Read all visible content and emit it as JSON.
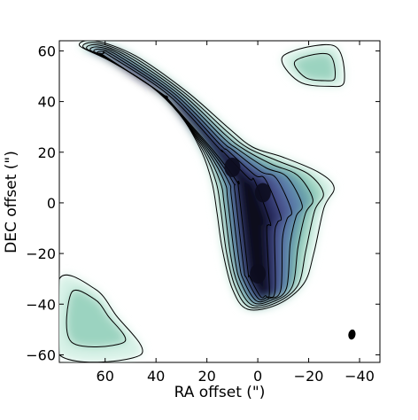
{
  "chart_data": {
    "type": "contour",
    "xlabel": "RA offset (\")",
    "ylabel": "DEC offset (\")",
    "xlim": [
      78,
      -48
    ],
    "ylim": [
      -63,
      64
    ],
    "x_ticks": [
      60,
      40,
      20,
      0,
      -20,
      -40
    ],
    "y_ticks": [
      60,
      40,
      20,
      0,
      -20,
      -40,
      -60
    ],
    "x_tick_labels": [
      "60",
      "40",
      "20",
      "0",
      "−20",
      "−40"
    ],
    "y_tick_labels": [
      "60",
      "40",
      "20",
      "0",
      "−20",
      "−40",
      "−60"
    ],
    "colormap_levels": [
      "#ffffff",
      "#d6f1e6",
      "#9bd3c0",
      "#6aa3aa",
      "#5c7faa",
      "#4b5791",
      "#2c2f63",
      "#0c0c1e"
    ],
    "grid": false,
    "emission_components": [
      {
        "name": "main",
        "outline": [
          [
            70,
            62
          ],
          [
            58,
            56
          ],
          [
            42,
            46
          ],
          [
            30,
            34
          ],
          [
            22,
            20
          ],
          [
            18,
            8
          ],
          [
            16,
            -4
          ],
          [
            14,
            -18
          ],
          [
            10,
            -34
          ],
          [
            4,
            -42
          ],
          [
            -8,
            -40
          ],
          [
            -18,
            -32
          ],
          [
            -22,
            -20
          ],
          [
            -26,
            -2
          ],
          [
            -30,
            6
          ],
          [
            -24,
            12
          ],
          [
            -10,
            18
          ],
          [
            2,
            22
          ],
          [
            12,
            30
          ],
          [
            28,
            44
          ],
          [
            48,
            58
          ],
          [
            64,
            64
          ]
        ]
      },
      {
        "name": "northwest-clump",
        "outline": [
          [
            -10,
            58
          ],
          [
            -16,
            48
          ],
          [
            -28,
            46
          ],
          [
            -34,
            48
          ],
          [
            -30,
            62
          ]
        ]
      },
      {
        "name": "southeast-fringe",
        "outline": [
          [
            78,
            -30
          ],
          [
            64,
            -34
          ],
          [
            56,
            -44
          ],
          [
            46,
            -60
          ],
          [
            78,
            -60
          ]
        ]
      }
    ],
    "peaks": [
      {
        "x": 10,
        "y": 14
      },
      {
        "x": -2,
        "y": 4
      },
      {
        "x": 0,
        "y": -28
      }
    ],
    "beam": {
      "x": -37,
      "y": -52,
      "major": 2.0,
      "minor": 1.4,
      "pa": 10
    }
  }
}
